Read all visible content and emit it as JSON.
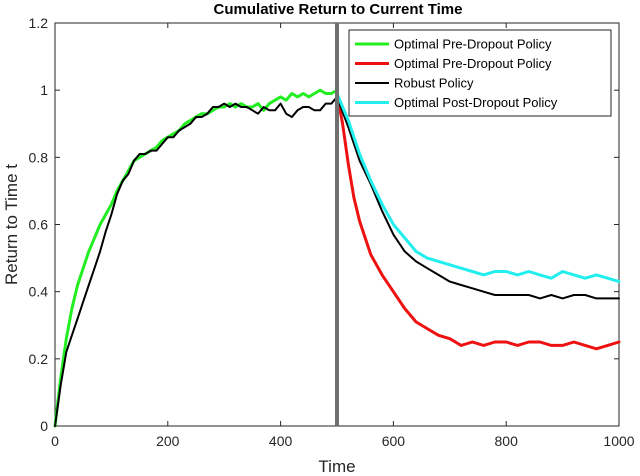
{
  "chart_data": {
    "type": "line",
    "title": "Cumulative Return to Current Time",
    "xlabel": "Time",
    "ylabel": "Return to Time t",
    "xlim": [
      0,
      1000
    ],
    "ylim": [
      0,
      1.2
    ],
    "xticks": [
      "0",
      "200",
      "400",
      "600",
      "800",
      "1000"
    ],
    "yticks": [
      "0",
      "0.2",
      "0.4",
      "0.6",
      "0.8",
      "1",
      "1.2"
    ],
    "grid": false,
    "legend_position": "top-right",
    "vertical_marker": {
      "x": 500,
      "color": "#707070"
    },
    "series": [
      {
        "name": "Optimal Pre-Dropout Policy",
        "color": "#22ee22",
        "legend_color": "#22ee22",
        "x": [
          0,
          10,
          20,
          30,
          40,
          50,
          60,
          70,
          80,
          90,
          100,
          110,
          120,
          130,
          140,
          150,
          160,
          170,
          180,
          190,
          200,
          210,
          220,
          230,
          240,
          250,
          260,
          270,
          280,
          290,
          300,
          310,
          320,
          330,
          340,
          350,
          360,
          370,
          380,
          390,
          400,
          410,
          420,
          430,
          440,
          450,
          460,
          470,
          480,
          490,
          500
        ],
        "y": [
          0.0,
          0.14,
          0.26,
          0.35,
          0.42,
          0.47,
          0.52,
          0.56,
          0.6,
          0.63,
          0.66,
          0.7,
          0.73,
          0.76,
          0.79,
          0.8,
          0.81,
          0.82,
          0.83,
          0.85,
          0.86,
          0.87,
          0.88,
          0.9,
          0.91,
          0.92,
          0.93,
          0.93,
          0.94,
          0.95,
          0.95,
          0.96,
          0.95,
          0.96,
          0.95,
          0.95,
          0.96,
          0.94,
          0.96,
          0.97,
          0.98,
          0.97,
          0.99,
          0.98,
          0.99,
          0.98,
          0.99,
          1.0,
          0.99,
          0.99,
          1.0
        ]
      },
      {
        "name": "Optimal Pre-Dropout Policy",
        "color": "#ee1111",
        "legend_color": "#ee1111",
        "x": [
          500,
          510,
          520,
          530,
          540,
          550,
          560,
          580,
          600,
          620,
          640,
          660,
          680,
          700,
          710,
          720,
          740,
          760,
          780,
          800,
          820,
          840,
          860,
          880,
          900,
          920,
          940,
          960,
          980,
          1000
        ],
        "y": [
          0.99,
          0.9,
          0.78,
          0.68,
          0.61,
          0.56,
          0.51,
          0.45,
          0.4,
          0.35,
          0.31,
          0.29,
          0.27,
          0.26,
          0.25,
          0.24,
          0.25,
          0.24,
          0.25,
          0.25,
          0.24,
          0.25,
          0.25,
          0.24,
          0.24,
          0.25,
          0.24,
          0.23,
          0.24,
          0.25
        ]
      },
      {
        "name": "Robust Policy",
        "color": "#000000",
        "legend_color": "#000000",
        "x": [
          0,
          10,
          20,
          30,
          40,
          50,
          60,
          70,
          80,
          90,
          100,
          110,
          120,
          130,
          140,
          150,
          160,
          170,
          180,
          190,
          200,
          210,
          220,
          230,
          240,
          250,
          260,
          270,
          280,
          290,
          300,
          310,
          320,
          330,
          340,
          350,
          360,
          370,
          380,
          390,
          400,
          410,
          420,
          430,
          440,
          450,
          460,
          470,
          480,
          490,
          500,
          520,
          540,
          560,
          580,
          600,
          620,
          640,
          660,
          680,
          700,
          720,
          740,
          760,
          780,
          800,
          820,
          840,
          860,
          880,
          900,
          920,
          940,
          960,
          980,
          1000
        ],
        "y": [
          0.0,
          0.12,
          0.22,
          0.27,
          0.32,
          0.37,
          0.42,
          0.47,
          0.52,
          0.58,
          0.63,
          0.69,
          0.73,
          0.75,
          0.79,
          0.81,
          0.81,
          0.82,
          0.82,
          0.84,
          0.86,
          0.86,
          0.88,
          0.89,
          0.9,
          0.92,
          0.92,
          0.93,
          0.95,
          0.95,
          0.96,
          0.95,
          0.96,
          0.95,
          0.95,
          0.94,
          0.93,
          0.95,
          0.94,
          0.94,
          0.96,
          0.93,
          0.92,
          0.94,
          0.95,
          0.95,
          0.94,
          0.94,
          0.96,
          0.96,
          0.98,
          0.89,
          0.79,
          0.72,
          0.64,
          0.57,
          0.52,
          0.49,
          0.47,
          0.45,
          0.43,
          0.42,
          0.41,
          0.4,
          0.39,
          0.39,
          0.39,
          0.39,
          0.38,
          0.39,
          0.38,
          0.39,
          0.39,
          0.38,
          0.38,
          0.38
        ]
      },
      {
        "name": "Optimal Post-Dropout Policy",
        "color": "#22eeee",
        "legend_color": "#22eeee",
        "x": [
          500,
          520,
          540,
          560,
          580,
          600,
          620,
          640,
          660,
          680,
          700,
          720,
          740,
          760,
          780,
          800,
          820,
          840,
          860,
          880,
          900,
          920,
          940,
          960,
          980,
          1000
        ],
        "y": [
          0.99,
          0.91,
          0.81,
          0.73,
          0.66,
          0.6,
          0.56,
          0.52,
          0.5,
          0.49,
          0.48,
          0.47,
          0.46,
          0.45,
          0.46,
          0.46,
          0.45,
          0.46,
          0.45,
          0.44,
          0.46,
          0.45,
          0.44,
          0.45,
          0.44,
          0.43
        ]
      }
    ]
  }
}
